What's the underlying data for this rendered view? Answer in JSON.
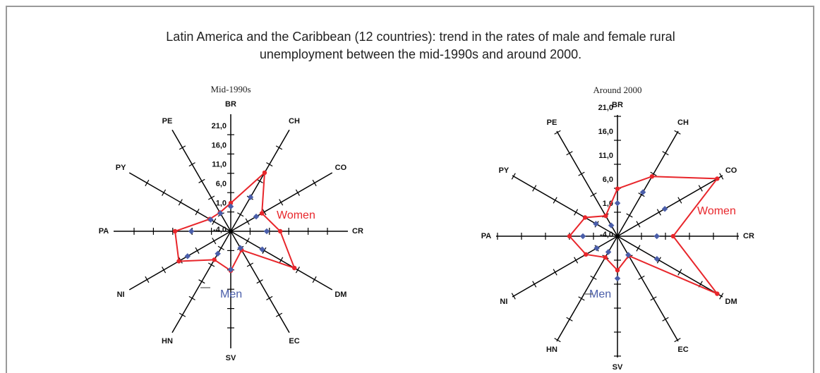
{
  "title_lines": [
    "Latin America and the Caribbean (12 countries): trend in the rates of male and female rural",
    "unemployment between the mid-1990s and around 2000."
  ],
  "chart_data": [
    {
      "type": "radar",
      "title": "Mid-1990s",
      "categories": [
        "BR",
        "CH",
        "CO",
        "CR",
        "DM",
        "EC",
        "SV",
        "HN",
        "NI",
        "PA",
        "PY",
        "PE"
      ],
      "rlim": [
        -4,
        21
      ],
      "rticks": [
        {
          "value": -4,
          "label": "-4,0"
        },
        {
          "value": 1,
          "label": "1,0"
        },
        {
          "value": 6,
          "label": "6,0"
        },
        {
          "value": 11,
          "label": "11,0"
        },
        {
          "value": 16,
          "label": "16,0"
        },
        {
          "value": 21,
          "label": "21,0"
        }
      ],
      "series": [
        {
          "name": "Women",
          "color": "#e8262b",
          "values": [
            3.3,
            13.5,
            5.3,
            8.8,
            15,
            1.6,
            6.2,
            4.5,
            11.5,
            10.4,
            2.3,
            1.6
          ]
        },
        {
          "name": "Men",
          "color": "#4a5eaa",
          "values": [
            2.4,
            6.2,
            3.6,
            5.3,
            5.4,
            1,
            5.9,
            2.7,
            8.9,
            6.2,
            2,
            1.4
          ]
        }
      ]
    },
    {
      "type": "radar",
      "title": "Around 2000",
      "categories": [
        "BR",
        "CH",
        "CO",
        "CR",
        "DM",
        "EC",
        "SV",
        "HN",
        "NI",
        "PA",
        "PY",
        "PE"
      ],
      "rlim": [
        -4,
        21
      ],
      "rticks": [
        {
          "value": -4,
          "label": "-4,0"
        },
        {
          "value": 1,
          "label": "1,0"
        },
        {
          "value": 6,
          "label": "6,0"
        },
        {
          "value": 11,
          "label": "11,0"
        },
        {
          "value": 16,
          "label": "16,0"
        },
        {
          "value": 21,
          "label": "21,0"
        }
      ],
      "series": [
        {
          "name": "Women",
          "color": "#e8262b",
          "values": [
            5.9,
            10.4,
            20,
            7.6,
            20,
            0.7,
            3.1,
            1.1,
            3.6,
            6,
            3.8,
            0.9
          ]
        },
        {
          "name": "Men",
          "color": "#4a5eaa",
          "values": [
            2.9,
            6.6,
            7.4,
            4.2,
            5.5,
            0.5,
            4.8,
            -0.2,
            1,
            3.2,
            1.2,
            -1.4
          ]
        }
      ]
    }
  ]
}
